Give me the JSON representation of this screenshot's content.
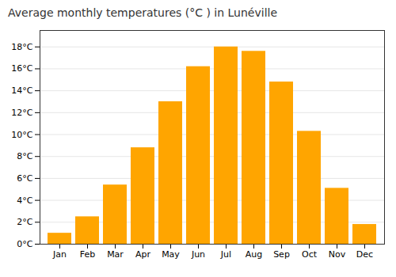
{
  "chart_data": {
    "type": "bar",
    "title": "Average monthly temperatures (°C ) in Lunéville",
    "categories": [
      "Jan",
      "Feb",
      "Mar",
      "Apr",
      "May",
      "Jun",
      "Jul",
      "Aug",
      "Sep",
      "Oct",
      "Nov",
      "Dec"
    ],
    "values": [
      1.0,
      2.5,
      5.4,
      8.8,
      13.0,
      16.2,
      18.0,
      17.6,
      14.8,
      10.3,
      5.1,
      1.8
    ],
    "color": "#FFA500",
    "ylim": [
      0,
      19.5
    ],
    "yticks": [
      {
        "value": 0,
        "label": "0°C"
      },
      {
        "value": 2,
        "label": "2°C"
      },
      {
        "value": 4,
        "label": "4°C"
      },
      {
        "value": 6,
        "label": "6°C"
      },
      {
        "value": 8,
        "label": "8°C"
      },
      {
        "value": 10,
        "label": "10°C"
      },
      {
        "value": 12,
        "label": "12°C"
      },
      {
        "value": 14,
        "label": "14°C"
      },
      {
        "value": 16,
        "label": "16°C"
      },
      {
        "value": 18,
        "label": "18°C"
      }
    ],
    "grid": true
  }
}
